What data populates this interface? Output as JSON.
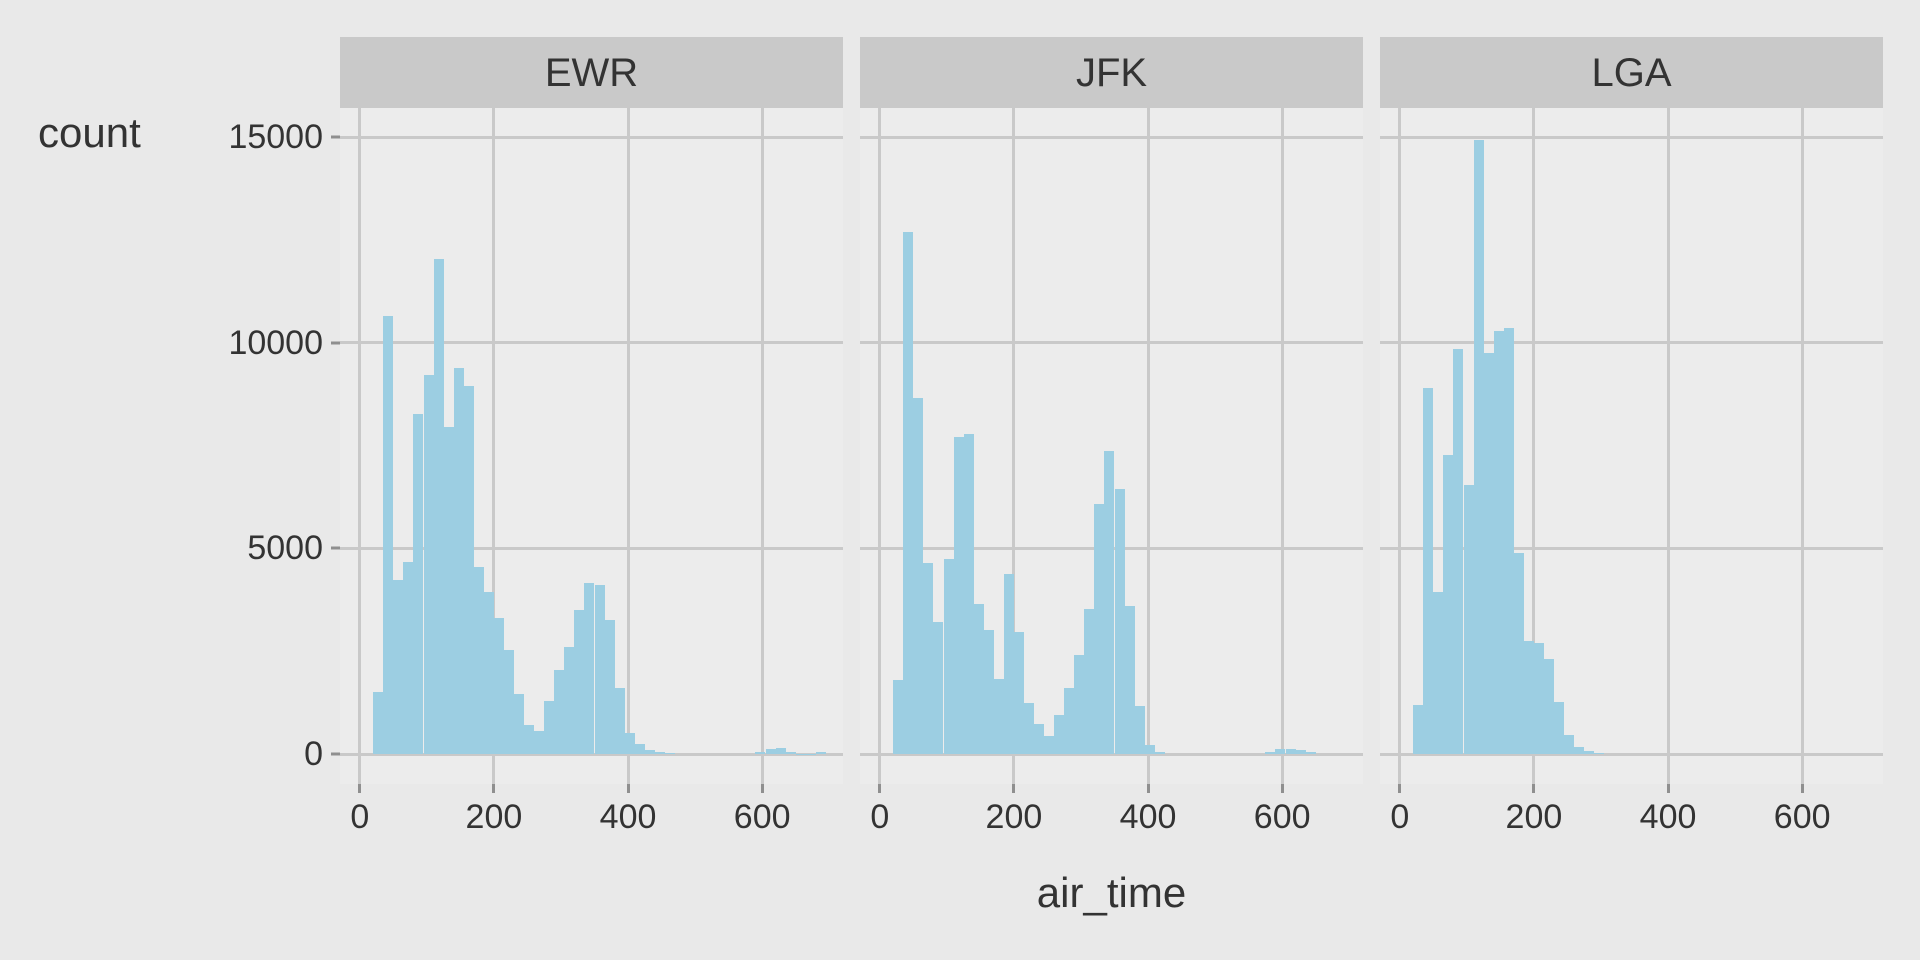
{
  "chart_data": {
    "type": "bar",
    "subtype": "faceted-histogram",
    "title": "",
    "xlabel": "air_time",
    "ylabel": "count",
    "grid": true,
    "legend": "none",
    "x_ticks": [
      0,
      200,
      400,
      600
    ],
    "x_tick_labels": [
      "0",
      "200",
      "400",
      "600"
    ],
    "y_ticks": [
      0,
      5000,
      10000,
      15000
    ],
    "y_tick_labels": [
      "0",
      "5000",
      "10000",
      "15000"
    ],
    "xlim": [
      -29.5,
      720.6
    ],
    "ylim": [
      -730,
      15690
    ],
    "bin_width": 15,
    "bin_start": 20,
    "facets": [
      {
        "label": "EWR",
        "counts": [
          1500,
          10650,
          4240,
          4670,
          8270,
          9220,
          12040,
          7940,
          9390,
          8950,
          4540,
          3950,
          3300,
          2540,
          1450,
          700,
          550,
          1300,
          2050,
          2600,
          3500,
          4150,
          4100,
          3250,
          1600,
          500,
          250,
          100,
          50,
          30,
          0,
          0,
          0,
          0,
          0,
          0,
          0,
          0,
          60,
          120,
          140,
          60,
          10,
          5,
          50
        ]
      },
      {
        "label": "JFK",
        "counts": [
          1800,
          12700,
          8650,
          4650,
          3200,
          4750,
          7700,
          7790,
          3655,
          3010,
          1815,
          4370,
          2960,
          1250,
          730,
          440,
          950,
          1600,
          2400,
          3520,
          6075,
          7360,
          6445,
          3590,
          1170,
          220,
          60,
          0,
          0,
          0,
          0,
          0,
          0,
          0,
          0,
          0,
          0,
          40,
          110,
          130,
          100,
          40
        ]
      },
      {
        "label": "LGA",
        "counts": [
          1200,
          8900,
          3950,
          7260,
          9845,
          6550,
          14930,
          9760,
          10290,
          10370,
          4890,
          2750,
          2700,
          2320,
          1260,
          450,
          180,
          70,
          20
        ]
      }
    ]
  },
  "layout_text": {
    "y_axis_title": "count",
    "x_axis_title": "air_time"
  },
  "colors": {
    "outer_bg": "#E9E9E9",
    "panel_bg": "#ECECEC",
    "strip_bg": "#C9C9C9",
    "gridline": "#C9C9C9",
    "bar_fill": "#9CCEE2",
    "tick_mark": "#8F8F8F",
    "text": "#333333"
  }
}
